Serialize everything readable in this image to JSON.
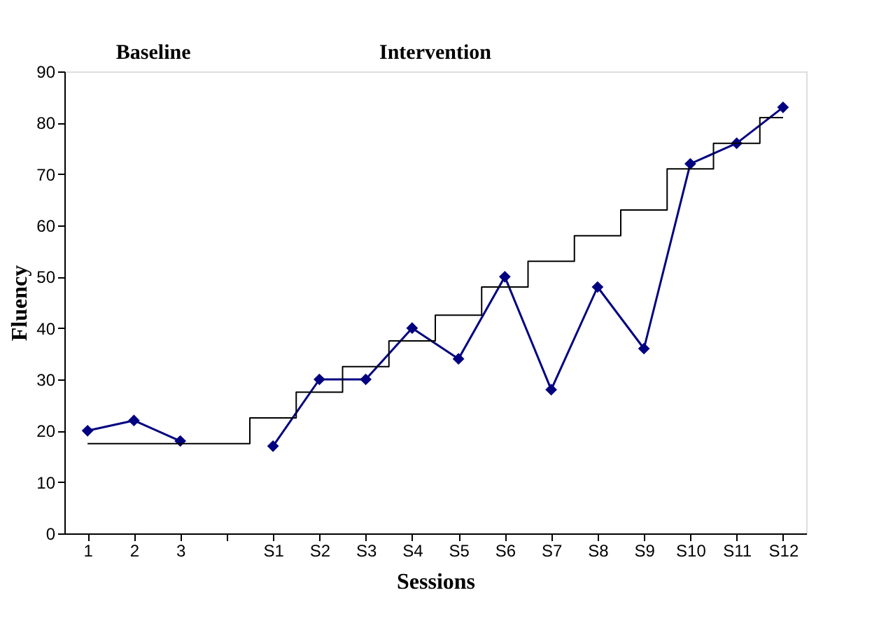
{
  "chart_data": {
    "type": "line",
    "xlabel": "Sessions",
    "ylabel": "Fluency",
    "categories": [
      "1",
      "2",
      "3",
      null,
      "S1",
      "S2",
      "S3",
      "S4",
      "S5",
      "S6",
      "S7",
      "S8",
      "S9",
      "S10",
      "S11",
      "S12"
    ],
    "series": [
      {
        "color": "#000080",
        "marker": "diamond",
        "values": [
          20,
          22,
          18,
          null,
          17,
          30,
          30,
          40,
          34,
          50,
          28,
          48,
          36,
          72,
          76,
          83
        ]
      },
      {
        "type": "step",
        "color": "#000000",
        "marker": "none",
        "values": [
          17.5,
          17.5,
          17.5,
          17.5,
          22.5,
          27.5,
          32.5,
          37.5,
          42.5,
          48,
          53,
          58,
          63,
          71,
          76,
          81
        ]
      }
    ],
    "ylim": [
      0,
      90
    ],
    "yticks": [
      0,
      10,
      20,
      30,
      40,
      50,
      60,
      70,
      80,
      90
    ],
    "grid": false,
    "annotations": [
      "Baseline",
      "Intervention"
    ]
  }
}
